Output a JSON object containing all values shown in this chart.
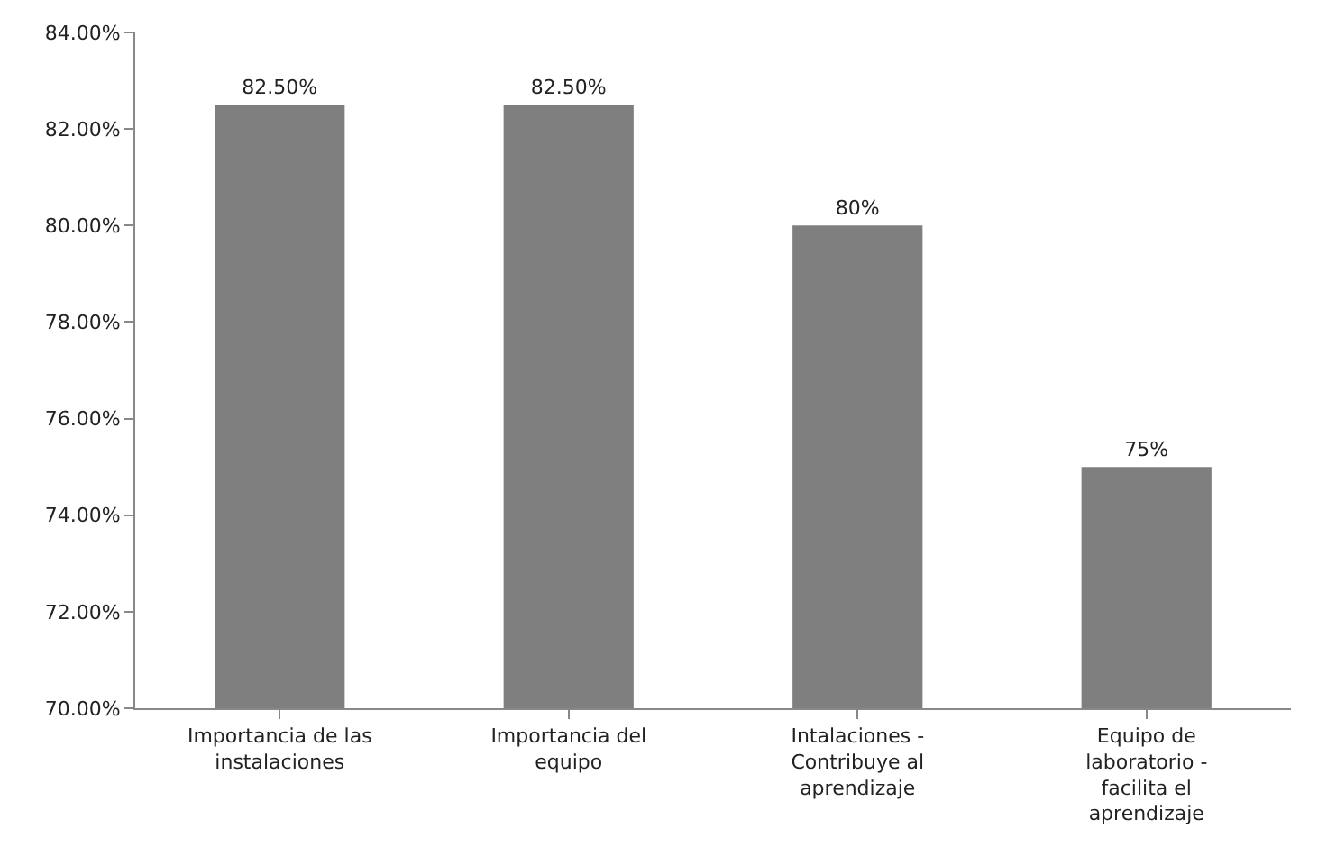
{
  "chart_data": {
    "type": "bar",
    "categories": [
      "Importancia de las instalaciones",
      "Importancia del equipo",
      "Intalaciones - Contribuye al aprendizaje",
      "Equipo de laboratorio - facilita el aprendizaje"
    ],
    "values": [
      82.5,
      82.5,
      80,
      75
    ],
    "value_labels": [
      "82.50%",
      "82.50%",
      "80%",
      "75%"
    ],
    "color": "#7f7f7f",
    "ylim": [
      70,
      84
    ],
    "yticks": [
      {
        "value": 70,
        "label": "70.00%"
      },
      {
        "value": 72,
        "label": "72.00%"
      },
      {
        "value": 74,
        "label": "74.00%"
      },
      {
        "value": 76,
        "label": "76.00%"
      },
      {
        "value": 78,
        "label": "78.00%"
      },
      {
        "value": 80,
        "label": "80.00%"
      },
      {
        "value": 82,
        "label": "82.00%"
      },
      {
        "value": 84,
        "label": "84.00%"
      }
    ],
    "grid": false,
    "legend": false
  }
}
